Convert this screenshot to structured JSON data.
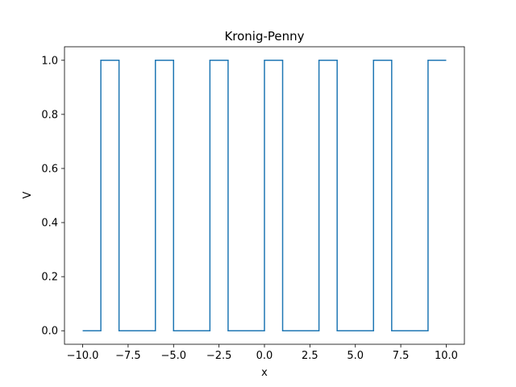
{
  "chart_data": {
    "type": "line",
    "title": "Kronig-Penny",
    "xlabel": "x",
    "ylabel": "V",
    "xlim": [
      -11,
      11
    ],
    "ylim": [
      -0.05,
      1.05
    ],
    "grid": false,
    "x_ticks": [
      -10,
      -7.5,
      -5,
      -2.5,
      0,
      2.5,
      5,
      7.5,
      10
    ],
    "x_tick_labels": [
      "−10.0",
      "−7.5",
      "−5.0",
      "−2.5",
      "0.0",
      "2.5",
      "5.0",
      "7.5",
      "10.0"
    ],
    "y_ticks": [
      0,
      0.2,
      0.4,
      0.6,
      0.8,
      1.0
    ],
    "y_tick_labels": [
      "0.0",
      "0.2",
      "0.4",
      "0.6",
      "0.8",
      "1.0"
    ],
    "series": [
      {
        "color": "#1f77b4",
        "x": [
          -10,
          -9,
          -9,
          -8,
          -8,
          -6,
          -6,
          -5,
          -5,
          -3,
          -3,
          -2,
          -2,
          0,
          0,
          1,
          1,
          3,
          3,
          4,
          4,
          6,
          6,
          7,
          7,
          9,
          9,
          10
        ],
        "y": [
          0,
          0,
          1,
          1,
          0,
          0,
          1,
          1,
          0,
          0,
          1,
          1,
          0,
          0,
          1,
          1,
          0,
          0,
          1,
          1,
          0,
          0,
          1,
          1,
          0,
          0,
          1,
          1
        ]
      }
    ]
  }
}
